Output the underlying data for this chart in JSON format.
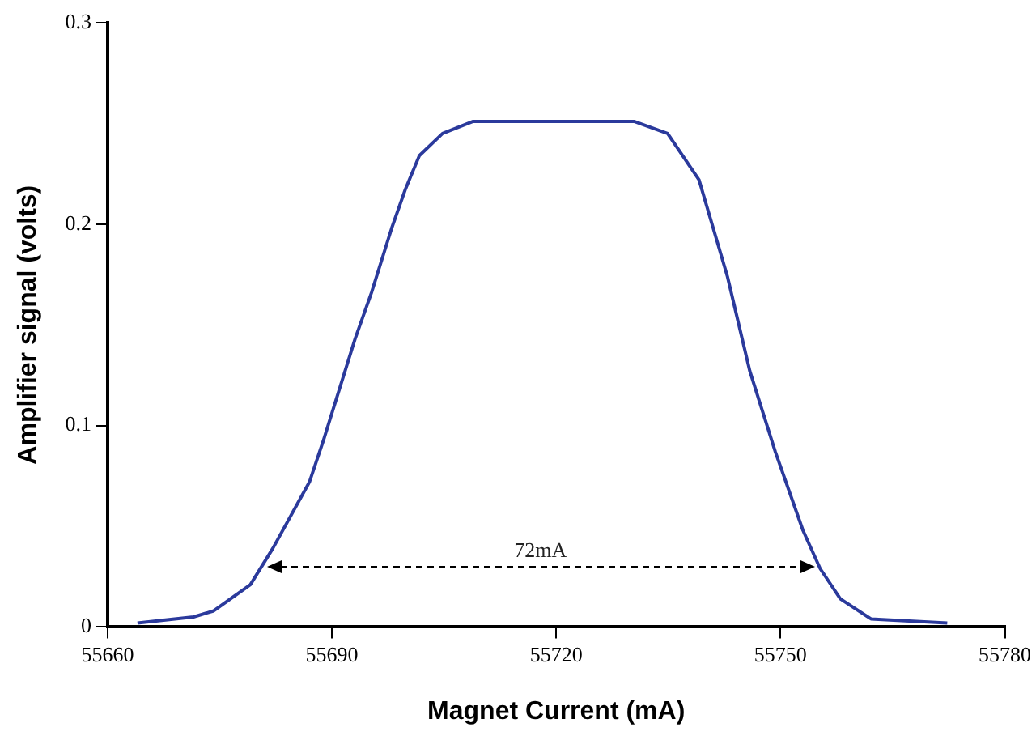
{
  "chart_data": {
    "type": "line",
    "xlabel": "Magnet Current (mA)",
    "ylabel": "Amplifier signal (volts)",
    "x": [
      55664,
      55671.5,
      55674.2,
      55679.1,
      55682.1,
      55687,
      55688.9,
      55693.1,
      55695.3,
      55698,
      55699.8,
      55701.7,
      55704.8,
      55708.9,
      55730.4,
      55734.9,
      55739.1,
      55742.9,
      55745.9,
      55749.3,
      55753,
      55755.3,
      55758,
      55762.1,
      55772.3
    ],
    "series": [
      {
        "color": "#2b3a9c",
        "values": [
          0.002,
          0.005,
          0.008,
          0.021,
          0.039,
          0.072,
          0.093,
          0.143,
          0.166,
          0.198,
          0.217,
          0.234,
          0.245,
          0.251,
          0.251,
          0.245,
          0.222,
          0.174,
          0.127,
          0.087,
          0.048,
          0.029,
          0.014,
          0.004,
          0.002
        ]
      }
    ],
    "xlim": [
      55660,
      55780
    ],
    "xticks": [
      55660,
      55690,
      55720,
      55750,
      55780
    ],
    "ylim": [
      0,
      0.3
    ],
    "yticks": [
      0,
      0.1,
      0.2,
      0.3
    ],
    "grid": false,
    "legend": false,
    "marker": "none",
    "line_style": "solid",
    "annotations": [
      "72mA"
    ]
  }
}
